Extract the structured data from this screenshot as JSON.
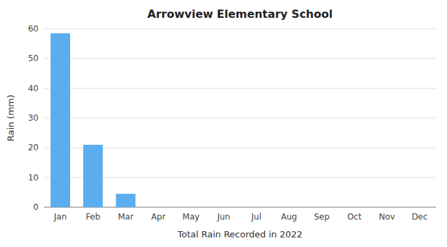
{
  "chart_data": {
    "type": "bar",
    "title": "Arrowview Elementary School",
    "xlabel": "Total Rain Recorded in 2022",
    "ylabel": "Rain (mm)",
    "categories": [
      "Jan",
      "Feb",
      "Mar",
      "Apr",
      "May",
      "Jun",
      "Jul",
      "Aug",
      "Sep",
      "Oct",
      "Nov",
      "Dec"
    ],
    "values": [
      58.5,
      21.0,
      4.5,
      0,
      0,
      0,
      0,
      0,
      0,
      0,
      0,
      0
    ],
    "color": "#5aadee",
    "ylim": [
      0,
      60
    ],
    "yticks": [
      0,
      10,
      20,
      30,
      40,
      50,
      60
    ],
    "grid": true
  }
}
